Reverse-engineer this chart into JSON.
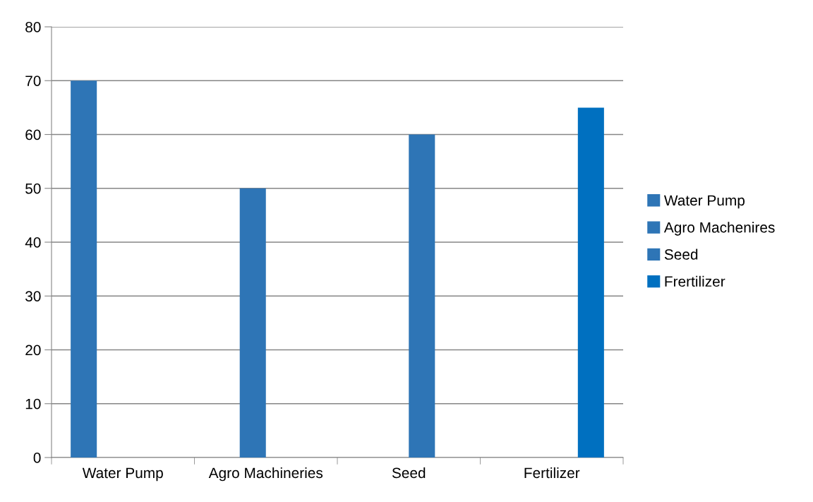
{
  "chart_data": {
    "type": "bar",
    "categories": [
      "Water Pump",
      "Agro Machineries",
      "Seed",
      "Fertilizer"
    ],
    "series": [
      {
        "name": "Water Pump",
        "color": "#2e75b6",
        "values": [
          70,
          null,
          null,
          null
        ]
      },
      {
        "name": "Agro Machenires",
        "color": "#2e75b6",
        "values": [
          null,
          50,
          null,
          null
        ]
      },
      {
        "name": "Seed",
        "color": "#2e75b6",
        "values": [
          null,
          null,
          60,
          null
        ]
      },
      {
        "name": "Frertilizer",
        "color": "#0070c0",
        "values": [
          null,
          null,
          null,
          65
        ]
      }
    ],
    "ylim": [
      0,
      80
    ],
    "yticks": [
      0,
      10,
      20,
      30,
      40,
      50,
      60,
      70,
      80
    ],
    "grid": "y",
    "legend": "right"
  }
}
